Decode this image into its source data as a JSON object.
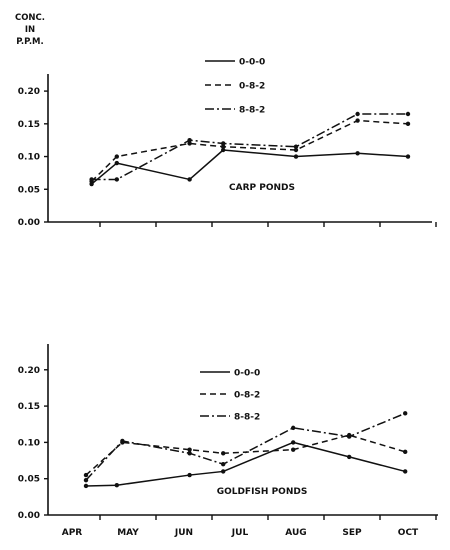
{
  "ylabel_lines": [
    "CONC.",
    "IN",
    "P.P.M."
  ],
  "chart_data": [
    {
      "type": "line",
      "title": "CARP PONDS",
      "ylabel": "CONC. IN P.P.M.",
      "ylim": [
        0,
        0.22
      ],
      "yticks": [
        "0.00",
        "0.05",
        "0.10",
        "0.15",
        "0.20"
      ],
      "x_months": [
        "APR",
        "MAY",
        "JUN",
        "JUL",
        "AUG",
        "SEP",
        "OCT"
      ],
      "legend_position": "top-center",
      "series": [
        {
          "name": "0-0-0",
          "style": "solid",
          "points": [
            [
              0.35,
              0.058
            ],
            [
              0.8,
              0.09
            ],
            [
              2.1,
              0.065
            ],
            [
              2.7,
              0.11
            ],
            [
              4.0,
              0.1
            ],
            [
              5.1,
              0.105
            ],
            [
              6.0,
              0.1
            ]
          ]
        },
        {
          "name": "0-8-2",
          "style": "dashed",
          "points": [
            [
              0.35,
              0.062
            ],
            [
              0.8,
              0.1
            ],
            [
              2.1,
              0.12
            ],
            [
              2.7,
              0.115
            ],
            [
              4.0,
              0.11
            ],
            [
              5.1,
              0.155
            ],
            [
              6.0,
              0.15
            ]
          ]
        },
        {
          "name": "8-8-2",
          "style": "dashdot",
          "points": [
            [
              0.35,
              0.065
            ],
            [
              0.8,
              0.065
            ],
            [
              2.1,
              0.125
            ],
            [
              2.7,
              0.12
            ],
            [
              4.0,
              0.115
            ],
            [
              5.1,
              0.165
            ],
            [
              6.0,
              0.165
            ]
          ]
        }
      ]
    },
    {
      "type": "line",
      "title": "GOLDFISH PONDS",
      "ylabel": "",
      "ylim": [
        0,
        0.23
      ],
      "yticks": [
        "0.00",
        "0.05",
        "0.10",
        "0.15",
        "0.20"
      ],
      "xticks": [
        "APR",
        "MAY",
        "JUN",
        "JUL",
        "AUG",
        "SEP",
        "OCT"
      ],
      "legend_position": "top-center",
      "series": [
        {
          "name": "0-0-0",
          "style": "solid",
          "points": [
            [
              0.25,
              0.04
            ],
            [
              0.8,
              0.041
            ],
            [
              2.1,
              0.055
            ],
            [
              2.7,
              0.06
            ],
            [
              3.95,
              0.1
            ],
            [
              4.95,
              0.08
            ],
            [
              5.95,
              0.06
            ]
          ]
        },
        {
          "name": "0-8-2",
          "style": "dashed",
          "points": [
            [
              0.25,
              0.055
            ],
            [
              0.9,
              0.1
            ],
            [
              2.1,
              0.09
            ],
            [
              2.7,
              0.085
            ],
            [
              3.95,
              0.09
            ],
            [
              4.95,
              0.11
            ],
            [
              5.95,
              0.087
            ]
          ]
        },
        {
          "name": "8-8-2",
          "style": "dashdot",
          "points": [
            [
              0.25,
              0.048
            ],
            [
              0.9,
              0.102
            ],
            [
              2.1,
              0.085
            ],
            [
              2.7,
              0.07
            ],
            [
              3.95,
              0.12
            ],
            [
              4.95,
              0.108
            ],
            [
              5.95,
              0.14
            ]
          ]
        }
      ]
    }
  ]
}
